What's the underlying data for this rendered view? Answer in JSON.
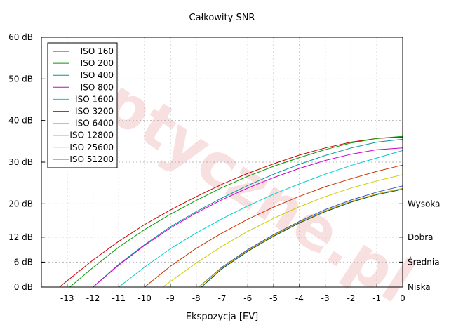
{
  "chart_data": {
    "type": "line",
    "title": "Całkowity SNR",
    "xlabel": "Ekspozycja [EV]",
    "ylabel": "",
    "xlim": [
      -14,
      0
    ],
    "ylim": [
      0,
      60
    ],
    "x_ticks": [
      -13,
      -12,
      -11,
      -10,
      -9,
      -8,
      -7,
      -6,
      -5,
      -4,
      -3,
      -2,
      -1,
      0
    ],
    "y_ticks": [
      {
        "value": 0,
        "label": "0 dB"
      },
      {
        "value": 6,
        "label": "6 dB"
      },
      {
        "value": 12,
        "label": "12 dB"
      },
      {
        "value": 20,
        "label": "20 dB"
      },
      {
        "value": 30,
        "label": "30 dB"
      },
      {
        "value": 40,
        "label": "40 dB"
      },
      {
        "value": 50,
        "label": "50 dB"
      },
      {
        "value": 60,
        "label": "60 dB"
      }
    ],
    "right_labels": [
      {
        "value": 0,
        "label": "Niska"
      },
      {
        "value": 6,
        "label": "Średnia"
      },
      {
        "value": 12,
        "label": "Dobra"
      },
      {
        "value": 20,
        "label": "Wysoka"
      }
    ],
    "grid": true,
    "legend_position": "top-left",
    "watermark": "Optyczne.pl",
    "series": [
      {
        "name": "ISO 160",
        "color": "#cc0000",
        "points": [
          [
            -13.3,
            0
          ],
          [
            -12,
            6.5
          ],
          [
            -11,
            11
          ],
          [
            -10,
            15
          ],
          [
            -9,
            18.5
          ],
          [
            -8,
            21.7
          ],
          [
            -7,
            24.7
          ],
          [
            -6,
            27.3
          ],
          [
            -5,
            29.6
          ],
          [
            -4,
            31.7
          ],
          [
            -3,
            33.4
          ],
          [
            -2,
            34.8
          ],
          [
            -1,
            35.7
          ],
          [
            0,
            36
          ]
        ]
      },
      {
        "name": "ISO 200",
        "color": "#009900",
        "points": [
          [
            -12.9,
            0
          ],
          [
            -12,
            4.7
          ],
          [
            -11,
            9.6
          ],
          [
            -10,
            13.8
          ],
          [
            -9,
            17.5
          ],
          [
            -8,
            20.8
          ],
          [
            -7,
            23.9
          ],
          [
            -6,
            26.6
          ],
          [
            -5,
            29
          ],
          [
            -4,
            31.1
          ],
          [
            -3,
            33
          ],
          [
            -2,
            34.6
          ],
          [
            -1,
            35.7
          ],
          [
            0,
            36.2
          ]
        ]
      },
      {
        "name": "ISO 400",
        "color": "#009999",
        "points": [
          [
            -12,
            0
          ],
          [
            -11,
            5.5
          ],
          [
            -10,
            10.2
          ],
          [
            -9,
            14.5
          ],
          [
            -8,
            18.1
          ],
          [
            -7,
            21.4
          ],
          [
            -6,
            24.4
          ],
          [
            -5,
            27.1
          ],
          [
            -4,
            29.5
          ],
          [
            -3,
            31.6
          ],
          [
            -2,
            33.4
          ],
          [
            -1,
            34.8
          ],
          [
            0,
            35.5
          ]
        ]
      },
      {
        "name": "ISO 800",
        "color": "#cc00cc",
        "points": [
          [
            -12,
            0
          ],
          [
            -11,
            5.3
          ],
          [
            -10,
            10
          ],
          [
            -9,
            14.2
          ],
          [
            -8,
            17.8
          ],
          [
            -7,
            21
          ],
          [
            -6,
            23.8
          ],
          [
            -5,
            26.3
          ],
          [
            -4,
            28.5
          ],
          [
            -3,
            30.4
          ],
          [
            -2,
            31.9
          ],
          [
            -1,
            33
          ],
          [
            0,
            33.4
          ]
        ]
      },
      {
        "name": "ISO 1600",
        "color": "#00cccc",
        "points": [
          [
            -11,
            0
          ],
          [
            -10,
            4.8
          ],
          [
            -9,
            9.2
          ],
          [
            -8,
            13
          ],
          [
            -7,
            16.4
          ],
          [
            -6,
            19.5
          ],
          [
            -5,
            22.3
          ],
          [
            -4,
            24.8
          ],
          [
            -3,
            27.1
          ],
          [
            -2,
            29.2
          ],
          [
            -1,
            31
          ],
          [
            0,
            32.8
          ]
        ]
      },
      {
        "name": "ISO 3200",
        "color": "#cc3300",
        "points": [
          [
            -10,
            0
          ],
          [
            -9,
            5
          ],
          [
            -8,
            9.3
          ],
          [
            -7,
            13
          ],
          [
            -6,
            16.3
          ],
          [
            -5,
            19.2
          ],
          [
            -4,
            21.8
          ],
          [
            -3,
            24.1
          ],
          [
            -2,
            26
          ],
          [
            -1,
            27.8
          ],
          [
            0,
            29.3
          ]
        ]
      },
      {
        "name": "ISO 6400",
        "color": "#cccc00",
        "points": [
          [
            -9.3,
            0
          ],
          [
            -8,
            5.8
          ],
          [
            -7,
            9.8
          ],
          [
            -6,
            13.4
          ],
          [
            -5,
            16.5
          ],
          [
            -4,
            19.3
          ],
          [
            -3,
            21.7
          ],
          [
            -2,
            23.8
          ],
          [
            -1,
            25.5
          ],
          [
            0,
            27
          ]
        ]
      },
      {
        "name": "ISO 12800",
        "color": "#3355cc",
        "points": [
          [
            -7.9,
            0
          ],
          [
            -7,
            4.8
          ],
          [
            -6,
            9
          ],
          [
            -5,
            12.6
          ],
          [
            -4,
            15.8
          ],
          [
            -3,
            18.6
          ],
          [
            -2,
            20.9
          ],
          [
            -1,
            22.8
          ],
          [
            0,
            24.3
          ]
        ]
      },
      {
        "name": "ISO 25600",
        "color": "#ddaa00",
        "points": [
          [
            -7.9,
            0
          ],
          [
            -7,
            4.6
          ],
          [
            -6,
            8.8
          ],
          [
            -5,
            12.4
          ],
          [
            -4,
            15.6
          ],
          [
            -3,
            18.3
          ],
          [
            -2,
            20.6
          ],
          [
            -1,
            22.4
          ],
          [
            0,
            23.7
          ]
        ]
      },
      {
        "name": "ISO 51200",
        "color": "#005533",
        "points": [
          [
            -7.8,
            0
          ],
          [
            -7,
            4.4
          ],
          [
            -6,
            8.6
          ],
          [
            -5,
            12.2
          ],
          [
            -4,
            15.4
          ],
          [
            -3,
            18.1
          ],
          [
            -2,
            20.4
          ],
          [
            -1,
            22.2
          ],
          [
            0,
            23.5
          ]
        ]
      }
    ]
  }
}
